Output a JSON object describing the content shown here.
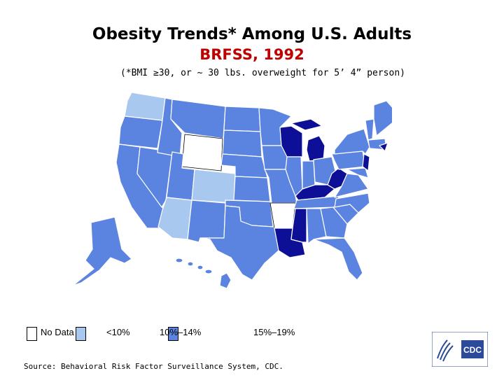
{
  "title": "Obesity Trends* Among U.S. Adults",
  "subtitle": "BRFSS, 1992",
  "note": "(*BMI ≥30, or ~ 30 lbs. overweight for 5’ 4” person)",
  "legend": [
    {
      "label": "No Data",
      "color": "#ffffff"
    },
    {
      "label": "<10%",
      "color": "#a9c8f0"
    },
    {
      "label": "10%–14%",
      "color": "#5b83e0"
    },
    {
      "label": "15%–19%",
      "color": "#0d0f96"
    }
  ],
  "source": "Source: Behavioral Risk Factor Surveillance System, CDC.",
  "logo_text": "CDC",
  "state_categories": {
    "no_data": [
      "Wyoming",
      "Arkansas"
    ],
    "under_10": [
      "Washington",
      "Colorado",
      "Arizona"
    ],
    "10_14": [
      "Oregon",
      "California",
      "Nevada",
      "Idaho",
      "Montana",
      "Utah",
      "New Mexico",
      "Texas",
      "Oklahoma",
      "Kansas",
      "Nebraska",
      "South Dakota",
      "North Dakota",
      "Minnesota",
      "Iowa",
      "Missouri",
      "Illinois",
      "Indiana",
      "Ohio",
      "Tennessee",
      "Alabama",
      "Georgia",
      "Florida",
      "South Carolina",
      "North Carolina",
      "Virginia",
      "Pennsylvania",
      "New York",
      "Maine",
      "Vermont",
      "New Hampshire",
      "Massachusetts",
      "Connecticut",
      "Maryland",
      "Delaware",
      "Alaska",
      "Hawaii"
    ],
    "15_19": [
      "Wisconsin",
      "Michigan",
      "Kentucky",
      "West Virginia",
      "Mississippi",
      "Louisiana",
      "New Jersey",
      "Rhode Island"
    ]
  }
}
